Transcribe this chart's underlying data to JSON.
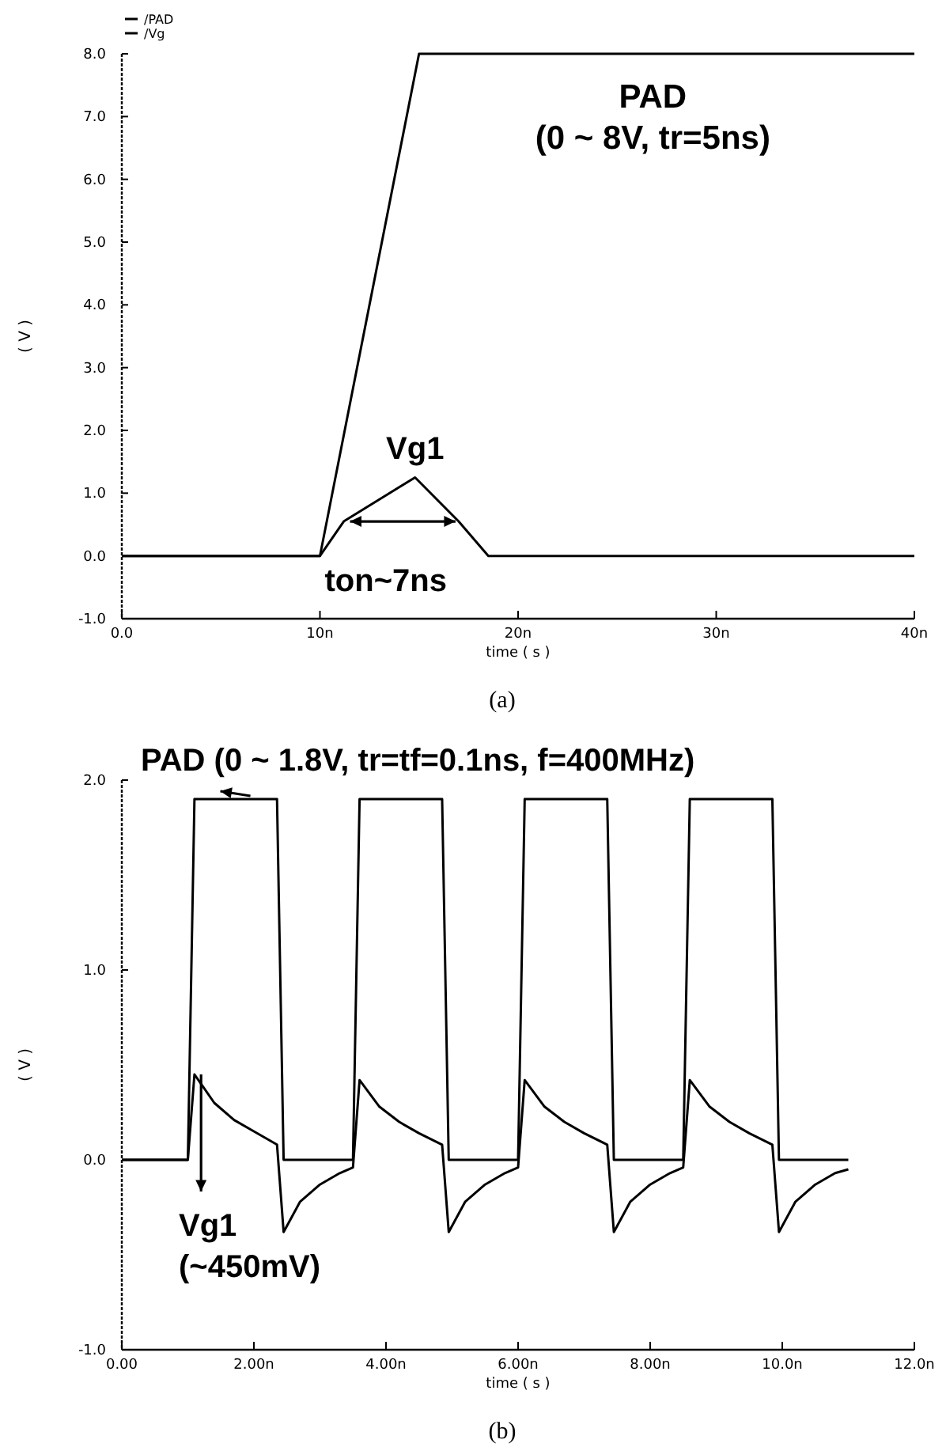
{
  "chart_data": [
    {
      "type": "line",
      "xlabel": "time ( s )",
      "ylabel": "( V )",
      "xlim": [
        0,
        40
      ],
      "xticks": [
        {
          "value": 0,
          "label": "0.0"
        },
        {
          "value": 10,
          "label": "10n"
        },
        {
          "value": 20,
          "label": "20n"
        },
        {
          "value": 30,
          "label": "30n"
        },
        {
          "value": 40,
          "label": "40n"
        }
      ],
      "ylim": [
        -1,
        8
      ],
      "yticks": [
        {
          "value": -1,
          "label": "-1.0"
        },
        {
          "value": 0,
          "label": "0.0"
        },
        {
          "value": 1,
          "label": "1.0"
        },
        {
          "value": 2,
          "label": "2.0"
        },
        {
          "value": 3,
          "label": "3.0"
        },
        {
          "value": 4,
          "label": "4.0"
        },
        {
          "value": 5,
          "label": "5.0"
        },
        {
          "value": 6,
          "label": "6.0"
        },
        {
          "value": 7,
          "label": "7.0"
        },
        {
          "value": 8,
          "label": "8.0"
        }
      ],
      "grid": false,
      "legend": "top left",
      "marker": "none",
      "line_style": "solid",
      "series": [
        {
          "name": "/PAD",
          "color": "#000000",
          "x": [
            0,
            10,
            15,
            40
          ],
          "values": [
            0,
            0,
            8,
            8
          ]
        },
        {
          "name": "/Vg",
          "color": "#000000",
          "x": [
            0,
            10,
            11.2,
            14.8,
            17,
            18.5,
            40
          ],
          "values": [
            0,
            0,
            0.55,
            1.25,
            0.55,
            0,
            0
          ]
        }
      ],
      "annotations": [
        "PAD\n(0 ~ 8V, tr=5ns)",
        {
          "text": "Vg1",
          "x": 14.8,
          "y": 1.25
        },
        {
          "text": "ton~7ns",
          "x": 11.2,
          "y": 0.55
        },
        "(a)"
      ]
    },
    {
      "type": "line",
      "xlabel": "time ( s )",
      "ylabel": "( V )",
      "xlim": [
        0,
        12
      ],
      "xticks": [
        {
          "value": 0,
          "label": "0.00"
        },
        {
          "value": 2,
          "label": "2.00n"
        },
        {
          "value": 4,
          "label": "4.00n"
        },
        {
          "value": 6,
          "label": "6.00n"
        },
        {
          "value": 8,
          "label": "8.00n"
        },
        {
          "value": 10,
          "label": "10.0n"
        },
        {
          "value": 12,
          "label": "12.0n"
        }
      ],
      "ylim": [
        -1,
        2
      ],
      "yticks": [
        {
          "value": -1,
          "label": "-1.0"
        },
        {
          "value": 0,
          "label": "0.0"
        },
        {
          "value": 1,
          "label": "1.0"
        },
        {
          "value": 2,
          "label": "2.0"
        }
      ],
      "grid": false,
      "legend": false,
      "marker": "none",
      "line_style": "solid",
      "series": [
        {
          "color": "#000000",
          "x": [
            0,
            1.0,
            1.1,
            2.35,
            2.45,
            3.5,
            3.6,
            4.85,
            4.95,
            6.0,
            6.1,
            7.35,
            7.45,
            8.5,
            8.6,
            9.85,
            9.95,
            11.0
          ],
          "values": [
            0,
            0,
            1.9,
            1.9,
            0,
            0,
            1.9,
            1.9,
            0,
            0,
            1.9,
            1.9,
            0,
            0,
            1.9,
            1.9,
            0,
            0
          ]
        },
        {
          "color": "#000000",
          "x": [
            0,
            1.0,
            1.1,
            1.4,
            1.7,
            2.0,
            2.35,
            2.45,
            2.7,
            3.0,
            3.3,
            3.5,
            3.6,
            3.9,
            4.2,
            4.5,
            4.85,
            4.95,
            5.2,
            5.5,
            5.8,
            6.0,
            6.1,
            6.4,
            6.7,
            7.0,
            7.35,
            7.45,
            7.7,
            8.0,
            8.3,
            8.5,
            8.6,
            8.9,
            9.2,
            9.5,
            9.85,
            9.95,
            10.2,
            10.5,
            10.8,
            11.0
          ],
          "values": [
            0,
            0,
            0.45,
            0.3,
            0.21,
            0.15,
            0.08,
            -0.38,
            -0.22,
            -0.13,
            -0.07,
            -0.04,
            0.42,
            0.28,
            0.2,
            0.14,
            0.08,
            -0.38,
            -0.22,
            -0.13,
            -0.07,
            -0.04,
            0.42,
            0.28,
            0.2,
            0.14,
            0.08,
            -0.38,
            -0.22,
            -0.13,
            -0.07,
            -0.04,
            0.42,
            0.28,
            0.2,
            0.14,
            0.08,
            -0.38,
            -0.22,
            -0.13,
            -0.07,
            -0.05
          ]
        }
      ],
      "annotations": [
        {
          "text": "PAD (0 ~ 1.8V, tr=tf=0.1ns, f=400MHz)",
          "x": 1.3,
          "y": 1.9
        },
        {
          "text": "Vg1\n(~450mV)",
          "x": 1.2,
          "y": 0.45
        },
        "(b)"
      ]
    }
  ]
}
